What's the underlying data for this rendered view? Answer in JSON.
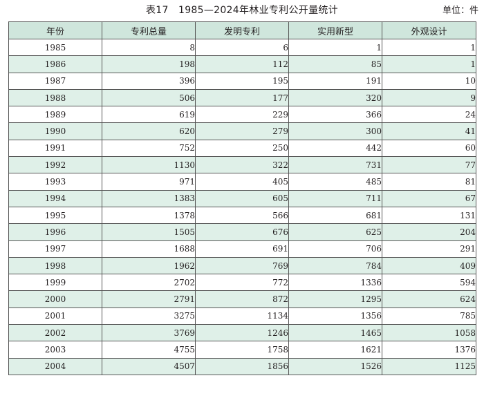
{
  "caption": {
    "title": "表17　1985—2024年林业专利公开量统计",
    "unit": "单位：件"
  },
  "table": {
    "headers": [
      "年份",
      "专利总量",
      "发明专利",
      "实用新型",
      "外观设计"
    ],
    "rows": [
      [
        "1985",
        "8",
        "6",
        "1",
        "1"
      ],
      [
        "1986",
        "198",
        "112",
        "85",
        "1"
      ],
      [
        "1987",
        "396",
        "195",
        "191",
        "10"
      ],
      [
        "1988",
        "506",
        "177",
        "320",
        "9"
      ],
      [
        "1989",
        "619",
        "229",
        "366",
        "24"
      ],
      [
        "1990",
        "620",
        "279",
        "300",
        "41"
      ],
      [
        "1991",
        "752",
        "250",
        "442",
        "60"
      ],
      [
        "1992",
        "1130",
        "322",
        "731",
        "77"
      ],
      [
        "1993",
        "971",
        "405",
        "485",
        "81"
      ],
      [
        "1994",
        "1383",
        "605",
        "711",
        "67"
      ],
      [
        "1995",
        "1378",
        "566",
        "681",
        "131"
      ],
      [
        "1996",
        "1505",
        "676",
        "625",
        "204"
      ],
      [
        "1997",
        "1688",
        "691",
        "706",
        "291"
      ],
      [
        "1998",
        "1962",
        "769",
        "784",
        "409"
      ],
      [
        "1999",
        "2702",
        "772",
        "1336",
        "594"
      ],
      [
        "2000",
        "2791",
        "872",
        "1295",
        "624"
      ],
      [
        "2001",
        "3275",
        "1134",
        "1356",
        "785"
      ],
      [
        "2002",
        "3769",
        "1246",
        "1465",
        "1058"
      ],
      [
        "2003",
        "4755",
        "1758",
        "1621",
        "1376"
      ],
      [
        "2004",
        "4507",
        "1856",
        "1526",
        "1125"
      ]
    ]
  }
}
